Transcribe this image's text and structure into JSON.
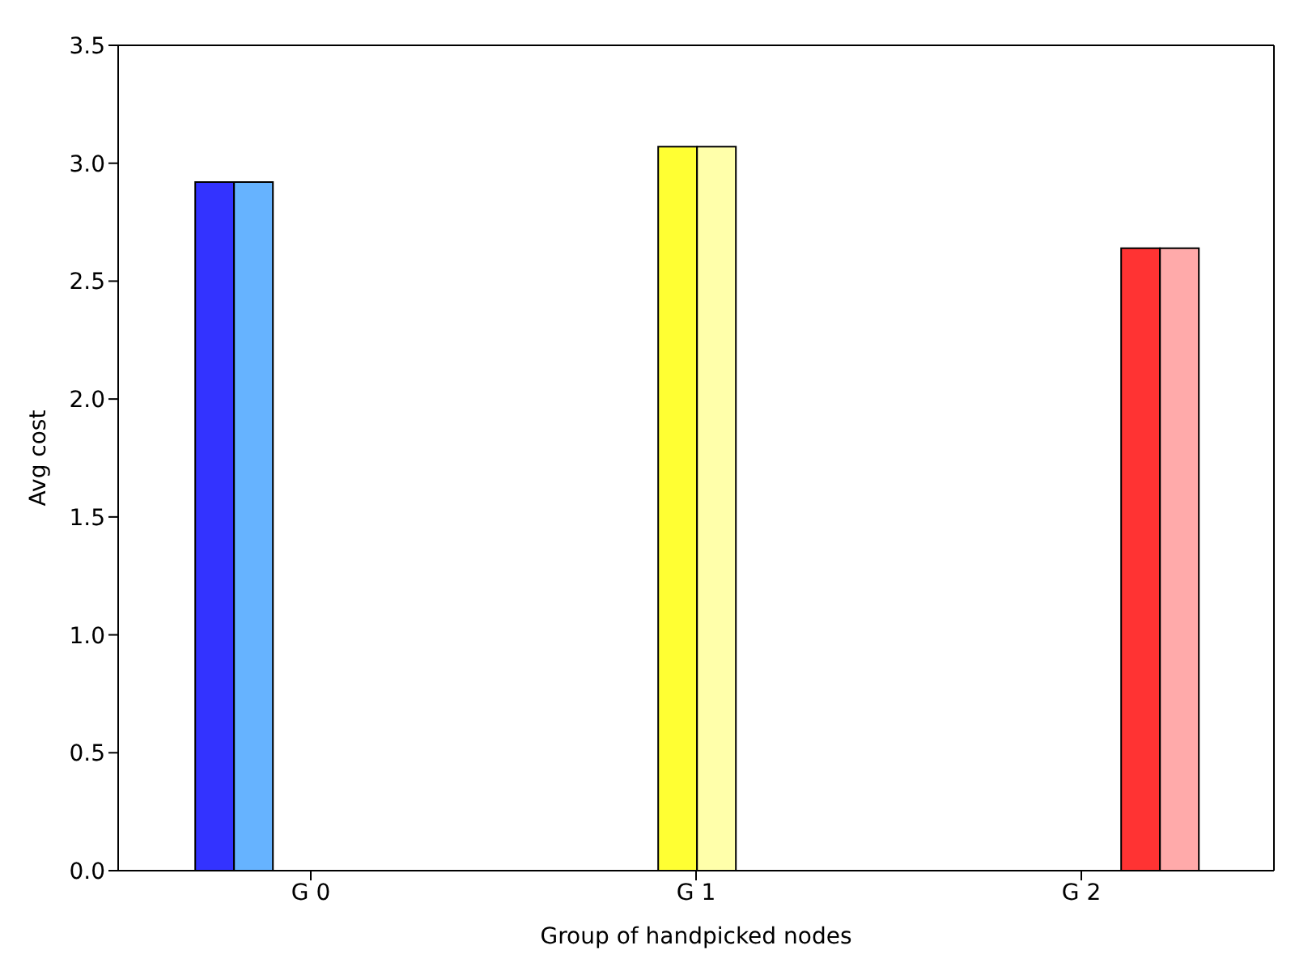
{
  "chart_data": {
    "type": "bar",
    "xlabel": "Group of handpicked nodes",
    "ylabel": "Avg cost",
    "categories": [
      "G 0",
      "G 1",
      "G 2"
    ],
    "series": [
      {
        "color": "#3333ff",
        "values": [
          2.92,
          0,
          0
        ]
      },
      {
        "color": "#66b3ff",
        "values": [
          2.92,
          0,
          0
        ]
      },
      {
        "color": "#ffff33",
        "values": [
          0,
          3.07,
          0
        ]
      },
      {
        "color": "#ffffaa",
        "values": [
          0,
          3.07,
          0
        ]
      },
      {
        "color": "#ff3333",
        "values": [
          0,
          0,
          2.64
        ]
      },
      {
        "color": "#ffaaaa",
        "values": [
          0,
          0,
          2.64
        ]
      }
    ],
    "ylim": [
      0,
      3.5
    ],
    "yticks": [
      {
        "value": 0,
        "label": "0.0"
      },
      {
        "value": 0.5,
        "label": "0.5"
      },
      {
        "value": 1,
        "label": "1.0"
      },
      {
        "value": 1.5,
        "label": "1.5"
      },
      {
        "value": 2,
        "label": "2.0"
      },
      {
        "value": 2.5,
        "label": "2.5"
      },
      {
        "value": 3,
        "label": "3.0"
      },
      {
        "value": 3.5,
        "label": "3.5"
      }
    ],
    "grid": false,
    "legend": false
  }
}
